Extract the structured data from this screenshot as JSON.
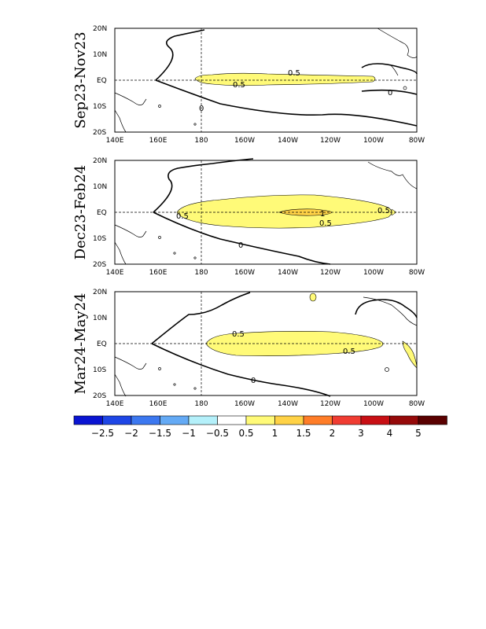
{
  "panels": [
    {
      "label": "Sep23-Nov23"
    },
    {
      "label": "Dec23-Feb24"
    },
    {
      "label": "Mar24-May24"
    }
  ],
  "axes": {
    "lon_ticks": [
      "140E",
      "160E",
      "180",
      "160W",
      "140W",
      "120W",
      "100W",
      "80W"
    ],
    "lat_ticks": [
      "20N",
      "10N",
      "EQ",
      "10S",
      "20S"
    ]
  },
  "contour_labels": {
    "p1": [
      "0.5",
      "0.5",
      "0",
      "0"
    ],
    "p2": [
      "0.5",
      "0.5",
      "1",
      "0.5",
      "0"
    ],
    "p3": [
      "0.5",
      "0.5",
      "0"
    ]
  },
  "colorbar": {
    "colors": [
      "#0a14d2",
      "#1e46e6",
      "#3c78f0",
      "#64aaf5",
      "#b4f0fa",
      "#ffffff",
      "#fffa78",
      "#ffd246",
      "#ff7d28",
      "#f03c32",
      "#c80f14",
      "#960a0a",
      "#5a0000"
    ],
    "labels": [
      "-2.5",
      "-2",
      "-1.5",
      "-1",
      "-0.5",
      "0.5",
      "1",
      "1.5",
      "2",
      "3",
      "4",
      "5"
    ]
  }
}
